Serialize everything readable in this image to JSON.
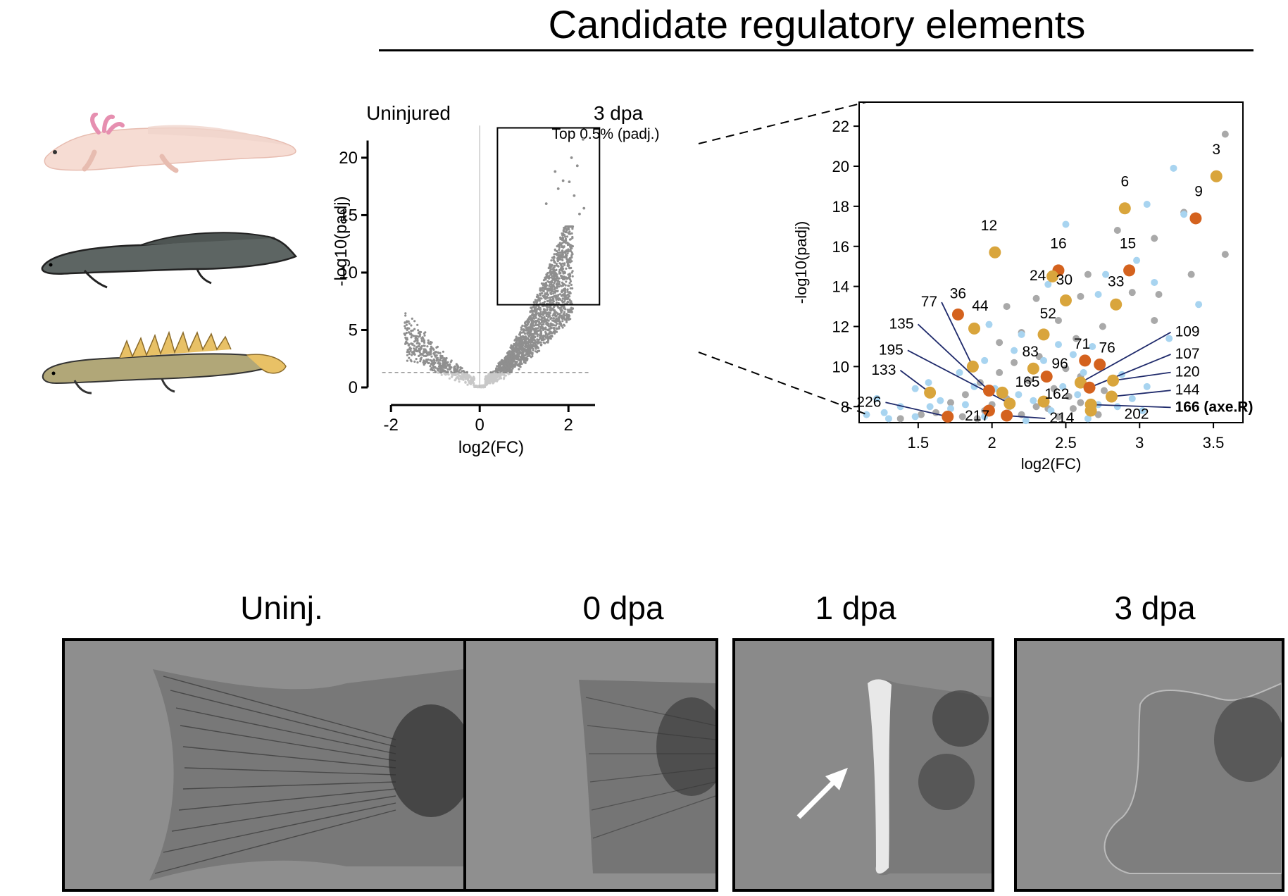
{
  "title": "Candidate regulatory elements",
  "animals": [
    "axolotl-illustration",
    "lungfish-illustration",
    "bichir-illustration"
  ],
  "chart_data": [
    {
      "type": "scatter",
      "name": "volcano",
      "group_labels": {
        "left": "Uninjured",
        "right": "3 dpa"
      },
      "box_label": "Top 0.5% (padj.)",
      "xlabel": "log2(FC)",
      "ylabel": "-log10(padj)",
      "xlim": [
        -2.4,
        2.6
      ],
      "ylim": [
        0,
        23
      ],
      "xticks": [
        -2,
        0,
        2
      ],
      "yticks": [
        0,
        5,
        10,
        15,
        20
      ],
      "threshold_y": 1.3,
      "box": {
        "x": [
          0.4,
          2.7
        ],
        "y": [
          7.2,
          22.6
        ]
      },
      "highlights": [
        [
          2.33,
          21.6
        ],
        [
          2.07,
          20.0
        ],
        [
          2.2,
          19.3
        ],
        [
          1.7,
          18.8
        ],
        [
          1.88,
          18.0
        ],
        [
          2.02,
          17.9
        ],
        [
          1.77,
          17.3
        ],
        [
          2.13,
          16.7
        ],
        [
          1.5,
          16.0
        ],
        [
          2.35,
          15.6
        ],
        [
          2.25,
          15.1
        ]
      ]
    },
    {
      "type": "scatter",
      "name": "zoom",
      "xlabel": "log2(FC)",
      "ylabel": "-log10(padj)",
      "xlim": [
        1.1,
        3.7
      ],
      "ylim": [
        7.2,
        23.2
      ],
      "xticks": [
        1.5,
        2,
        2.5,
        3,
        3.5
      ],
      "xtick_labels": [
        "1.5",
        "2",
        "2.5",
        "3",
        "3.5"
      ],
      "yticks": [
        8,
        10,
        12,
        14,
        16,
        18,
        20,
        22
      ],
      "colors": {
        "orange": "#d4621e",
        "gold": "#d9a53c",
        "blue": "#a8d4f0",
        "grey": "#a9a9a9"
      },
      "points": [
        {
          "label": "3",
          "x": 3.52,
          "y": 19.5,
          "c": "gold",
          "lx": 3.52,
          "ly": 20.6,
          "leader": false
        },
        {
          "label": "9",
          "x": 3.38,
          "y": 17.4,
          "c": "orange",
          "lx": 3.4,
          "ly": 18.5,
          "leader": false
        },
        {
          "label": "6",
          "x": 2.9,
          "y": 17.9,
          "c": "gold",
          "lx": 2.9,
          "ly": 19.0,
          "leader": false
        },
        {
          "label": "12",
          "x": 2.02,
          "y": 15.7,
          "c": "gold",
          "lx": 1.98,
          "ly": 16.8,
          "leader": false
        },
        {
          "label": "16",
          "x": 2.45,
          "y": 14.8,
          "c": "orange",
          "lx": 2.45,
          "ly": 15.9,
          "leader": false
        },
        {
          "label": "15",
          "x": 2.93,
          "y": 14.8,
          "c": "orange",
          "lx": 2.92,
          "ly": 15.9,
          "leader": false
        },
        {
          "label": "24",
          "x": 2.41,
          "y": 14.5,
          "c": "gold",
          "lx": 2.31,
          "ly": 14.3,
          "leader": false
        },
        {
          "label": "30",
          "x": 2.5,
          "y": 13.3,
          "c": "gold",
          "lx": 2.49,
          "ly": 14.1,
          "leader": false
        },
        {
          "label": "33",
          "x": 2.84,
          "y": 13.1,
          "c": "gold",
          "lx": 2.84,
          "ly": 14.0,
          "leader": false
        },
        {
          "label": "36",
          "x": 1.77,
          "y": 12.6,
          "c": "orange",
          "lx": 1.77,
          "ly": 13.4,
          "leader": false
        },
        {
          "label": "44",
          "x": 1.88,
          "y": 11.9,
          "c": "gold",
          "lx": 1.92,
          "ly": 12.8,
          "leader": false
        },
        {
          "label": "52",
          "x": 2.35,
          "y": 11.6,
          "c": "gold",
          "lx": 2.38,
          "ly": 12.4,
          "leader": false
        },
        {
          "label": "77",
          "x": 1.87,
          "y": 10.0,
          "c": "gold",
          "lx": 1.63,
          "ly": 13.0,
          "leader": true
        },
        {
          "label": "135",
          "x": 1.98,
          "y": 8.8,
          "c": "orange",
          "lx": 1.47,
          "ly": 11.9,
          "leader": true
        },
        {
          "label": "195",
          "x": 2.12,
          "y": 8.15,
          "c": "gold",
          "lx": 1.4,
          "ly": 10.6,
          "leader": true
        },
        {
          "label": "133",
          "x": 1.58,
          "y": 8.7,
          "c": "gold",
          "lx": 1.35,
          "ly": 9.6,
          "leader": true
        },
        {
          "label": "226",
          "x": 1.7,
          "y": 7.5,
          "c": "orange",
          "lx": 1.25,
          "ly": 8.0,
          "leader": true
        },
        {
          "label": "83",
          "x": 2.28,
          "y": 9.9,
          "c": "gold",
          "lx": 2.26,
          "ly": 10.5,
          "leader": false
        },
        {
          "label": "96",
          "x": 2.37,
          "y": 9.5,
          "c": "orange",
          "lx": 2.46,
          "ly": 9.9,
          "leader": false
        },
        {
          "label": "71",
          "x": 2.63,
          "y": 10.3,
          "c": "orange",
          "lx": 2.61,
          "ly": 10.9,
          "leader": false
        },
        {
          "label": "76",
          "x": 2.73,
          "y": 10.1,
          "c": "orange",
          "lx": 2.78,
          "ly": 10.7,
          "leader": false
        },
        {
          "label": "165",
          "x": 2.07,
          "y": 8.7,
          "c": "gold",
          "lx": 2.24,
          "ly": 9.0,
          "leader": false
        },
        {
          "label": "162",
          "x": 2.35,
          "y": 8.25,
          "c": "gold",
          "lx": 2.44,
          "ly": 8.4,
          "leader": false
        },
        {
          "label": "217",
          "x": 1.98,
          "y": 7.8,
          "c": "orange",
          "lx": 1.9,
          "ly": 7.3,
          "leader": false
        },
        {
          "label": "214",
          "x": 2.1,
          "y": 7.55,
          "c": "orange",
          "lx": 2.39,
          "ly": 7.2,
          "leader": true
        },
        {
          "label": "109",
          "x": 2.6,
          "y": 9.2,
          "c": "gold",
          "lx": 3.24,
          "ly": 11.5,
          "leader": true
        },
        {
          "label": "107",
          "x": 2.66,
          "y": 8.95,
          "c": "orange",
          "lx": 3.24,
          "ly": 10.4,
          "leader": true
        },
        {
          "label": "120",
          "x": 2.82,
          "y": 9.3,
          "c": "gold",
          "lx": 3.24,
          "ly": 9.5,
          "leader": true
        },
        {
          "label": "144",
          "x": 2.81,
          "y": 8.5,
          "c": "gold",
          "lx": 3.24,
          "ly": 8.6,
          "leader": true
        },
        {
          "label": "166 (axe.R)",
          "x": 2.67,
          "y": 8.1,
          "c": "gold",
          "lx": 3.24,
          "ly": 7.75,
          "leader": true,
          "bold": true
        },
        {
          "label": "202",
          "x": 2.67,
          "y": 7.8,
          "c": "gold",
          "lx": 2.98,
          "ly": 7.4,
          "leader": false
        }
      ],
      "grey_points": [
        [
          3.58,
          21.6
        ],
        [
          3.3,
          17.7
        ],
        [
          2.85,
          16.8
        ],
        [
          3.1,
          16.4
        ],
        [
          3.58,
          15.6
        ],
        [
          3.35,
          14.6
        ],
        [
          2.65,
          14.6
        ],
        [
          2.95,
          13.7
        ],
        [
          2.3,
          13.4
        ],
        [
          3.13,
          13.6
        ],
        [
          2.1,
          13.0
        ],
        [
          2.6,
          13.5
        ],
        [
          3.1,
          12.3
        ],
        [
          2.75,
          12.0
        ],
        [
          2.45,
          12.3
        ],
        [
          2.2,
          11.7
        ],
        [
          2.05,
          11.2
        ],
        [
          2.57,
          11.4
        ],
        [
          2.32,
          10.5
        ],
        [
          2.15,
          10.2
        ],
        [
          2.5,
          9.9
        ],
        [
          2.05,
          9.7
        ],
        [
          2.6,
          9.5
        ],
        [
          1.92,
          9.2
        ],
        [
          2.25,
          9.3
        ],
        [
          2.42,
          8.9
        ],
        [
          2.76,
          8.8
        ],
        [
          1.82,
          8.6
        ],
        [
          2.1,
          8.4
        ],
        [
          2.52,
          8.5
        ],
        [
          1.72,
          8.2
        ],
        [
          2.3,
          8.0
        ],
        [
          1.95,
          7.8
        ],
        [
          2.55,
          7.9
        ],
        [
          1.52,
          7.6
        ],
        [
          1.8,
          7.5
        ],
        [
          2.2,
          7.6
        ],
        [
          2.45,
          7.5
        ],
        [
          1.38,
          7.4
        ],
        [
          2.72,
          7.6
        ],
        [
          1.62,
          7.7
        ],
        [
          2.0,
          8.1
        ],
        [
          2.38,
          7.9
        ],
        [
          2.6,
          8.2
        ],
        [
          1.9,
          7.4
        ]
      ],
      "blue_points": [
        [
          3.23,
          19.9
        ],
        [
          3.05,
          18.1
        ],
        [
          3.3,
          17.6
        ],
        [
          2.5,
          17.1
        ],
        [
          2.98,
          15.3
        ],
        [
          2.77,
          14.6
        ],
        [
          3.1,
          14.2
        ],
        [
          2.38,
          14.1
        ],
        [
          2.72,
          13.6
        ],
        [
          3.4,
          13.1
        ],
        [
          1.98,
          12.1
        ],
        [
          2.2,
          11.6
        ],
        [
          2.45,
          11.1
        ],
        [
          2.68,
          11.0
        ],
        [
          3.2,
          11.4
        ],
        [
          2.62,
          9.7
        ],
        [
          1.95,
          10.3
        ],
        [
          1.78,
          9.7
        ],
        [
          2.15,
          10.8
        ],
        [
          2.35,
          10.3
        ],
        [
          2.55,
          10.6
        ],
        [
          1.57,
          9.2
        ],
        [
          1.88,
          9.0
        ],
        [
          2.02,
          8.9
        ],
        [
          2.48,
          9.0
        ],
        [
          2.88,
          9.6
        ],
        [
          3.05,
          9.0
        ],
        [
          1.48,
          8.9
        ],
        [
          1.65,
          8.3
        ],
        [
          1.82,
          8.1
        ],
        [
          2.18,
          8.6
        ],
        [
          2.58,
          8.6
        ],
        [
          2.95,
          8.4
        ],
        [
          1.22,
          8.4
        ],
        [
          1.38,
          8.0
        ],
        [
          1.58,
          8.0
        ],
        [
          2.28,
          8.3
        ],
        [
          2.72,
          8.1
        ],
        [
          1.15,
          7.6
        ],
        [
          1.3,
          7.4
        ],
        [
          1.48,
          7.5
        ],
        [
          1.95,
          7.5
        ],
        [
          2.12,
          8.0
        ],
        [
          2.4,
          7.8
        ],
        [
          2.85,
          8.0
        ],
        [
          1.72,
          7.9
        ],
        [
          2.23,
          7.3
        ],
        [
          2.65,
          7.4
        ],
        [
          1.27,
          7.7
        ],
        [
          3.02,
          7.8
        ]
      ]
    }
  ],
  "photos": [
    {
      "label": "Uninj."
    },
    {
      "label": "0 dpa"
    },
    {
      "label": "1 dpa"
    },
    {
      "label": "3 dpa"
    }
  ]
}
